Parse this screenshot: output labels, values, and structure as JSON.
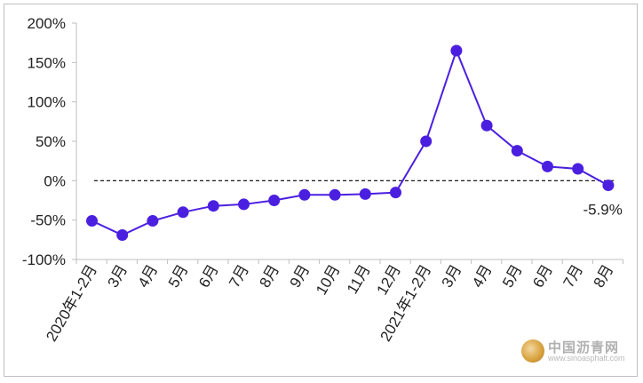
{
  "chart_data": {
    "type": "line",
    "title": "",
    "xlabel": "",
    "ylabel": "",
    "categories": [
      "2020年1-2月",
      "3月",
      "4月",
      "5月",
      "6月",
      "7月",
      "8月",
      "9月",
      "10月",
      "11月",
      "12月",
      "2021年1-2月",
      "3月",
      "4月",
      "5月",
      "6月",
      "7月",
      "8月"
    ],
    "series": [
      {
        "values": [
          -51,
          -69,
          -51,
          -40,
          -32,
          -30,
          -25,
          -18,
          -18,
          -17,
          -15,
          50,
          165,
          70,
          38,
          18,
          15,
          -5.9
        ]
      }
    ],
    "y_ticks": [
      "200%",
      "150%",
      "100%",
      "50%",
      "0%",
      "-50%",
      "-100%"
    ],
    "ylim": [
      -100,
      200
    ],
    "reference_line": {
      "value": 0,
      "style": "dashed"
    },
    "annotations": [
      {
        "index": 17,
        "text": "-5.9%"
      }
    ],
    "grid": false,
    "legend": "none",
    "colors": {
      "line": "#4B1FE0",
      "marker": "#4B1FE0",
      "axis": "#bfbfbf",
      "reference": "#000000"
    }
  },
  "watermark": {
    "name": "中国沥青网",
    "url": "www.sinoasphalt.com"
  }
}
